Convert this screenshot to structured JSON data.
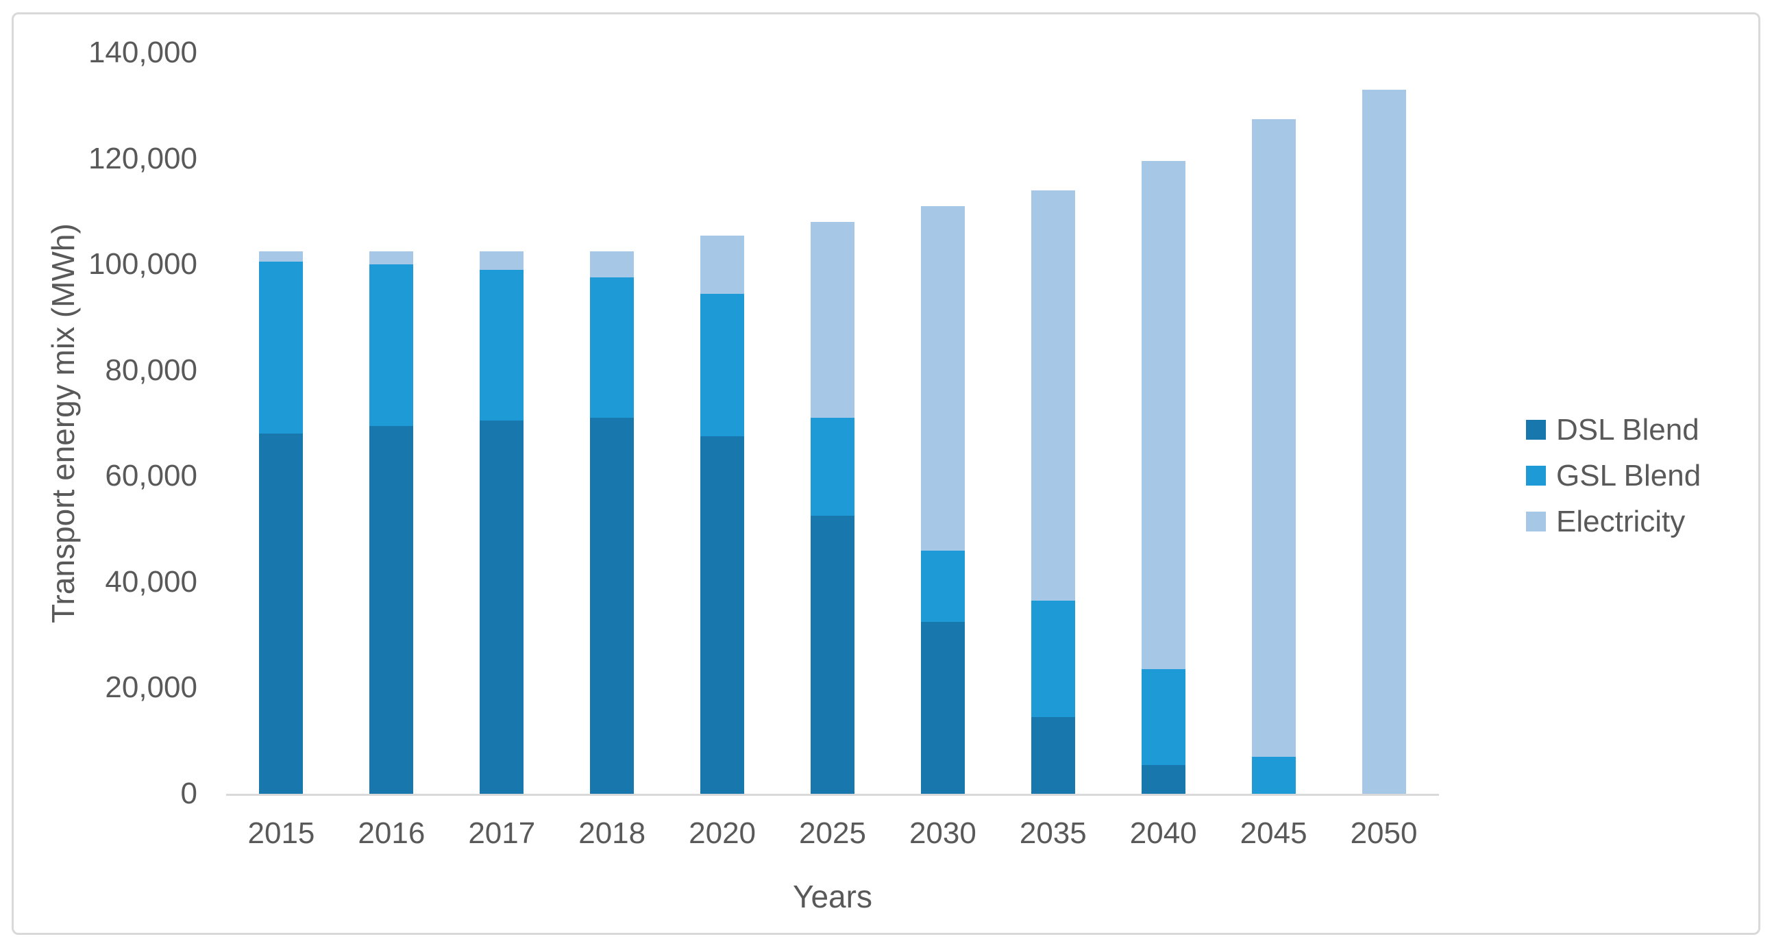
{
  "figure": {
    "background": "#FFFFFF",
    "border_color": "#D9D9D9",
    "axis_line_color": "#D9D9D9",
    "text_color": "#595959"
  },
  "chart_data": {
    "type": "bar",
    "stacked": true,
    "title": "",
    "xlabel": "Years",
    "ylabel": "Transport energy mix (MWh)",
    "categories": [
      "2015",
      "2016",
      "2017",
      "2018",
      "2020",
      "2025",
      "2030",
      "2035",
      "2040",
      "2045",
      "2050"
    ],
    "series": [
      {
        "name": "DSL Blend",
        "color": "#1878AE",
        "values": [
          68000,
          69500,
          70500,
          71000,
          67500,
          52500,
          32500,
          14500,
          5500,
          0,
          0
        ]
      },
      {
        "name": "GSL Blend",
        "color": "#1E9BD7",
        "values": [
          32500,
          30500,
          28500,
          26500,
          27000,
          18500,
          13500,
          22000,
          18000,
          7000,
          0
        ]
      },
      {
        "name": "Electricity",
        "color": "#A7C7E7",
        "values": [
          2000,
          2500,
          3500,
          5000,
          11000,
          37000,
          65000,
          77500,
          96000,
          120500,
          133000
        ]
      }
    ],
    "totals": [
      102500,
      102500,
      102500,
      102500,
      105500,
      108000,
      111000,
      114000,
      119500,
      127500,
      133000
    ],
    "ylim": [
      0,
      140000
    ],
    "y_ticks": [
      {
        "value": 0,
        "label": "0"
      },
      {
        "value": 20000,
        "label": "20,000"
      },
      {
        "value": 40000,
        "label": "40,000"
      },
      {
        "value": 60000,
        "label": "60,000"
      },
      {
        "value": 80000,
        "label": "80,000"
      },
      {
        "value": 100000,
        "label": "100,000"
      },
      {
        "value": 120000,
        "label": "120,000"
      },
      {
        "value": 140000,
        "label": "140,000"
      }
    ],
    "legend_position": "right",
    "grid": false
  }
}
